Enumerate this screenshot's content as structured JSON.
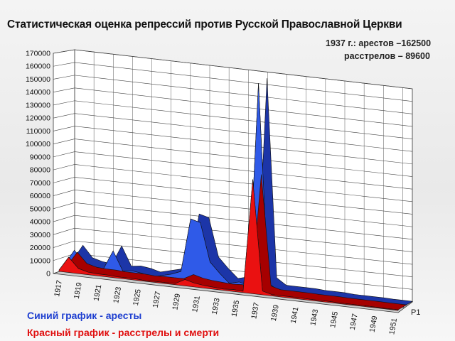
{
  "chart_data": {
    "type": "area",
    "title": "Статистическая оценка репрессий против Русской Православной Церкви",
    "annotation_line1": "1937  г.: арестов –162500",
    "annotation_line2": "расстрелов – 89600",
    "legend_blue": "Синий график -  аресты",
    "legend_red": "Красный график - расстрелы  и смерти",
    "series_label": "Р1",
    "ylim": [
      0,
      170000
    ],
    "y_ticks": [
      "0",
      "10000",
      "20000",
      "30000",
      "40000",
      "50000",
      "60000",
      "70000",
      "80000",
      "90000",
      "100000",
      "110000",
      "120000",
      "130000",
      "140000",
      "150000",
      "160000",
      "170000"
    ],
    "x_tick_labels": [
      "1917",
      "1919",
      "1921",
      "1923",
      "1925",
      "1927",
      "1929",
      "1931",
      "1933",
      "1935",
      "1937",
      "1939",
      "1941",
      "1943",
      "1945",
      "1947",
      "1949",
      "1951"
    ],
    "x": [
      1917,
      1918,
      1919,
      1920,
      1921,
      1922,
      1923,
      1924,
      1925,
      1926,
      1927,
      1928,
      1929,
      1930,
      1931,
      1932,
      1933,
      1934,
      1935,
      1936,
      1937,
      1938,
      1939,
      1940,
      1941,
      1942,
      1943,
      1944,
      1945,
      1946,
      1947,
      1948,
      1949,
      1950,
      1951,
      1952
    ],
    "series": [
      {
        "color": "#2f5ae8",
        "values": [
          3000,
          15000,
          6000,
          4000,
          3000,
          18000,
          3000,
          4000,
          3000,
          1000,
          3000,
          5000,
          8000,
          50000,
          48000,
          18000,
          10000,
          3000,
          5000,
          3000,
          162500,
          7000,
          2000,
          2000,
          2000,
          2000,
          1500,
          1500,
          1500,
          1000,
          1000,
          1000,
          1000,
          800,
          800,
          800
        ]
      },
      {
        "color": "#ea1111",
        "values": [
          1000,
          12000,
          4000,
          2000,
          1500,
          1500,
          1000,
          1000,
          1000,
          500,
          800,
          800,
          1000,
          5000,
          3000,
          2000,
          1500,
          1000,
          1500,
          1000,
          89600,
          3000,
          1000,
          1000,
          1000,
          1000,
          800,
          800,
          800,
          600,
          600,
          600,
          600,
          500,
          500,
          500
        ]
      }
    ]
  }
}
